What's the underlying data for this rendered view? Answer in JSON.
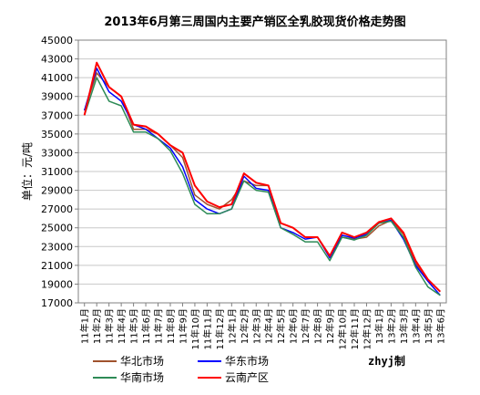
{
  "chart_data": {
    "type": "line",
    "title": "2013年6月第三周国内主要产销区全乳胶现货价格走势图",
    "ylabel": "单位：元/吨",
    "xlabel": "",
    "ylim": [
      17000,
      45000
    ],
    "yticks": [
      17000,
      19000,
      21000,
      23000,
      25000,
      27000,
      29000,
      31000,
      33000,
      35000,
      37000,
      39000,
      41000,
      43000,
      45000
    ],
    "x_ticks": [
      "11年1月",
      "11年2月",
      "11年3月",
      "11年4月",
      "11年5月",
      "11年6月",
      "11年7月",
      "11年8月",
      "11年9月",
      "11年10月",
      "11年11月",
      "11年12月",
      "12年1月",
      "12年2月",
      "12年3月",
      "12年4月",
      "12年5月",
      "12年6月",
      "12年7月",
      "12年8月",
      "12年9月",
      "12年10月",
      "12年11月",
      "12年12月",
      "13年1月",
      "13年2月",
      "13年3月",
      "13年4月",
      "13年5月",
      "13年6月"
    ],
    "grid": true,
    "legend_position": "bottom",
    "credit": "zhyj制",
    "series": [
      {
        "name": "华北市场",
        "color": "#a0522d",
        "values": [
          37500,
          41500,
          40000,
          39000,
          35500,
          35500,
          35000,
          33800,
          32500,
          28500,
          27500,
          27000,
          28000,
          30000,
          29500,
          29500,
          25500,
          25000,
          24000,
          24000,
          22000,
          24000,
          23800,
          24000,
          25200,
          25800,
          24300,
          21200,
          19500,
          18200
        ]
      },
      {
        "name": "华东市场",
        "color": "#0000ff",
        "values": [
          37500,
          42000,
          39500,
          38500,
          36000,
          35500,
          34500,
          33500,
          31500,
          28000,
          27000,
          26500,
          27000,
          30500,
          29200,
          29000,
          25000,
          24500,
          23800,
          24000,
          21800,
          24200,
          23900,
          24300,
          25500,
          25800,
          23800,
          21000,
          19300,
          17800
        ]
      },
      {
        "name": "华南市场",
        "color": "#2e8b57",
        "values": [
          37000,
          41000,
          38500,
          38000,
          35200,
          35200,
          34500,
          33200,
          30800,
          27500,
          26500,
          26500,
          27000,
          30000,
          29000,
          28800,
          25000,
          24300,
          23500,
          23500,
          21500,
          24000,
          23700,
          24200,
          25500,
          25700,
          24000,
          20800,
          18700,
          17800
        ]
      },
      {
        "name": "云南产区",
        "color": "#ff0000",
        "values": [
          37000,
          42600,
          40000,
          39000,
          36000,
          35800,
          35000,
          33800,
          33000,
          29500,
          27800,
          27200,
          27500,
          30800,
          29800,
          29500,
          25500,
          25000,
          24000,
          24000,
          22000,
          24500,
          24000,
          24500,
          25600,
          26000,
          24500,
          21500,
          19500,
          18200
        ]
      }
    ]
  }
}
